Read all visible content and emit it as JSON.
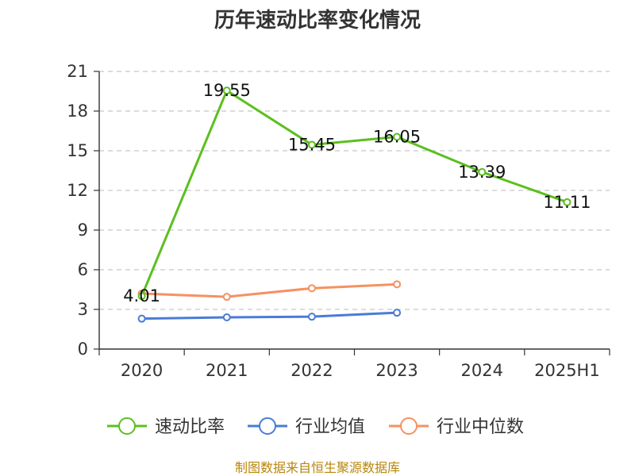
{
  "chart_data": {
    "type": "line",
    "title": "历年速动比率变化情况",
    "categories": [
      "2020",
      "2021",
      "2022",
      "2023",
      "2024",
      "2025H1"
    ],
    "ylim": [
      0,
      21
    ],
    "yticks": [
      0,
      3,
      6,
      9,
      12,
      15,
      18,
      21
    ],
    "grid": true,
    "legend_position": "bottom",
    "series": [
      {
        "name": "速动比率",
        "color": "#5cbf1f",
        "values": [
          4.01,
          19.55,
          15.45,
          16.05,
          13.39,
          11.11
        ],
        "labels": [
          "4.01",
          "19.55",
          "15.45",
          "16.05",
          "13.39",
          "11.11"
        ]
      },
      {
        "name": "行业均值",
        "color": "#4a7bd8",
        "values": [
          2.3,
          2.4,
          2.45,
          2.75,
          null,
          null
        ]
      },
      {
        "name": "行业中位数",
        "color": "#f59161",
        "values": [
          4.2,
          3.95,
          4.6,
          4.9,
          null,
          null
        ]
      }
    ],
    "source": "制图数据来自恒生聚源数据库"
  }
}
